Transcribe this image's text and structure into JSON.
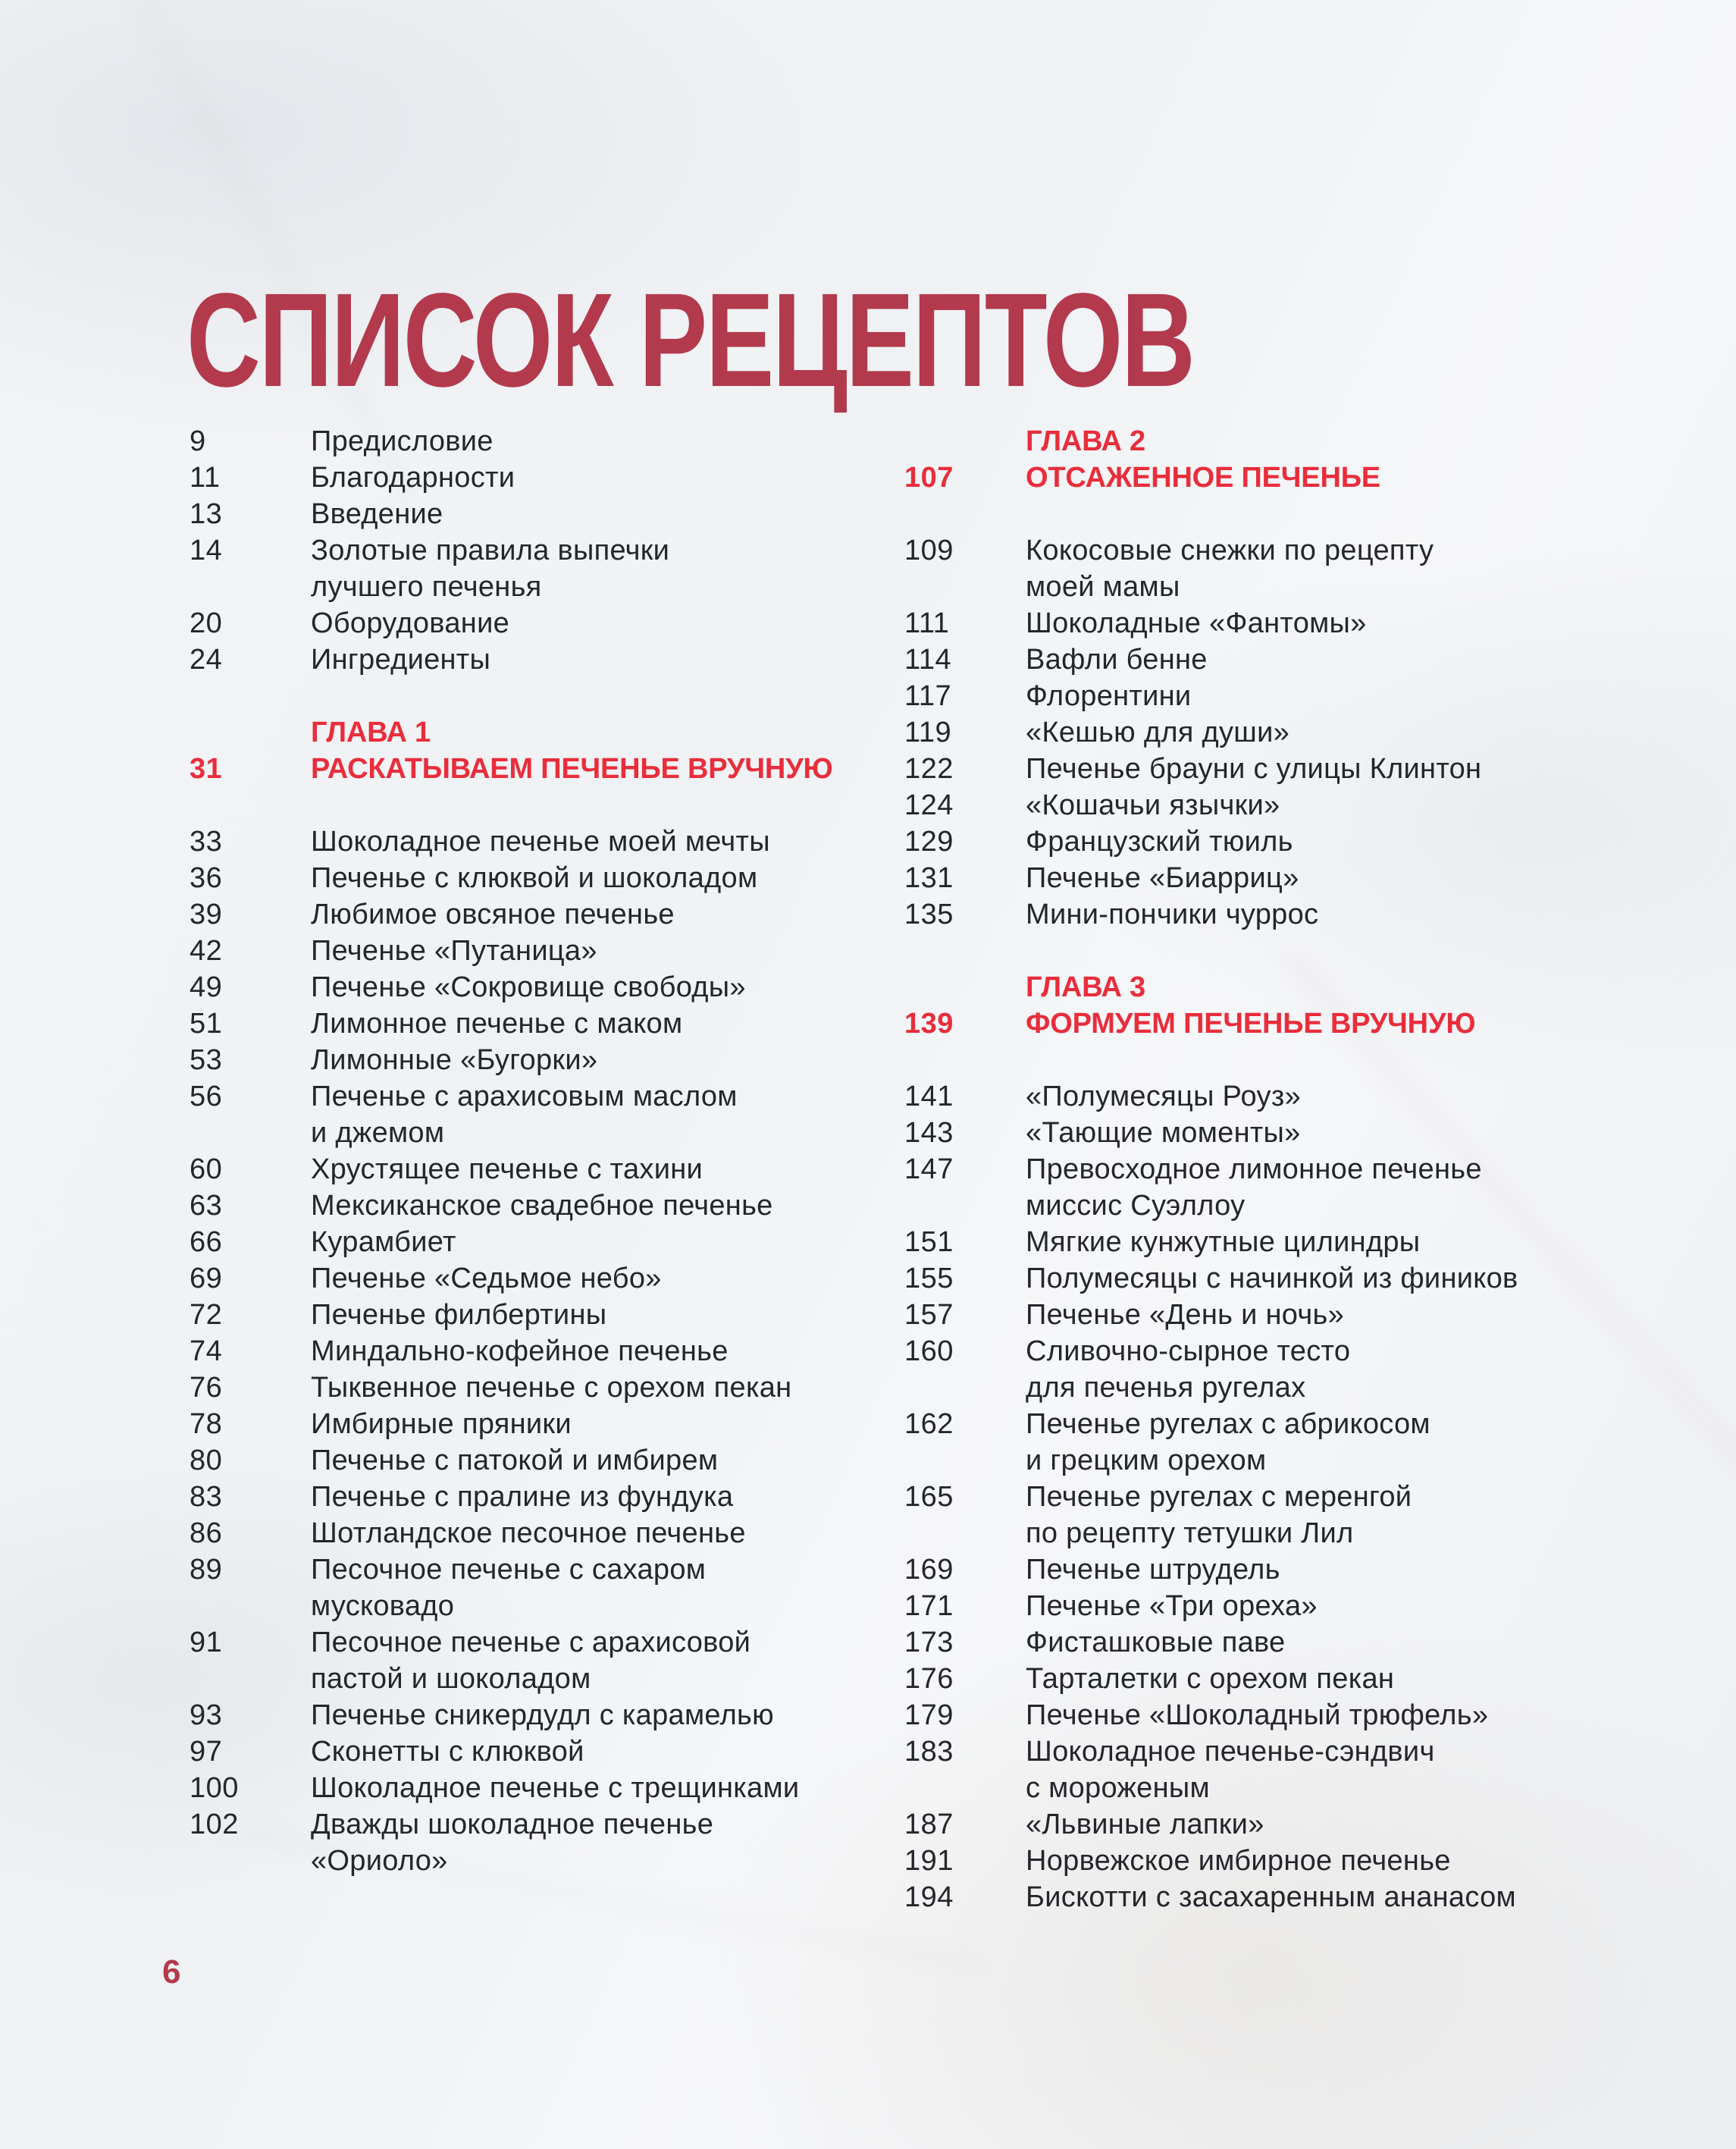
{
  "page": {
    "title": "СПИСОК РЕЦЕПТОВ",
    "page_number": "6",
    "colors": {
      "title": "#b23a4c",
      "chapter": "#e92d3b",
      "text": "#24262c",
      "folio": "#b23a4c",
      "background": "#f1f2f5"
    }
  },
  "toc": {
    "columns": [
      {
        "name": "left",
        "sections": [
          {
            "chapter": null,
            "entries": [
              {
                "page": "9",
                "lines": [
                  "Предисловие"
                ]
              },
              {
                "page": "11",
                "lines": [
                  "Благодарности"
                ]
              },
              {
                "page": "13",
                "lines": [
                  "Введение"
                ]
              },
              {
                "page": "14",
                "lines": [
                  "Золотые правила выпечки",
                  "лучшего печенья"
                ]
              },
              {
                "page": "20",
                "lines": [
                  "Оборудование"
                ]
              },
              {
                "page": "24",
                "lines": [
                  "Ингредиенты"
                ]
              }
            ]
          },
          {
            "chapter": {
              "label": "ГЛАВА 1",
              "page": "31",
              "title": "РАСКАТЫВАЕМ ПЕЧЕНЬЕ ВРУЧНУЮ"
            },
            "entries": [
              {
                "page": "33",
                "lines": [
                  "Шоколадное печенье моей мечты"
                ]
              },
              {
                "page": "36",
                "lines": [
                  "Печенье с клюквой и шоколадом"
                ]
              },
              {
                "page": "39",
                "lines": [
                  "Любимое овсяное печенье"
                ]
              },
              {
                "page": "42",
                "lines": [
                  "Печенье «Путаница»"
                ]
              },
              {
                "page": "49",
                "lines": [
                  "Печенье «Сокровище свободы»"
                ]
              },
              {
                "page": "51",
                "lines": [
                  "Лимонное печенье с маком"
                ]
              },
              {
                "page": "53",
                "lines": [
                  "Лимонные «Бугорки»"
                ]
              },
              {
                "page": "56",
                "lines": [
                  "Печенье с арахисовым маслом",
                  "и джемом"
                ]
              },
              {
                "page": "60",
                "lines": [
                  "Хрустящее печенье с тахини"
                ]
              },
              {
                "page": "63",
                "lines": [
                  "Мексиканское свадебное печенье"
                ]
              },
              {
                "page": "66",
                "lines": [
                  "Курамбиет"
                ]
              },
              {
                "page": "69",
                "lines": [
                  "Печенье «Седьмое небо»"
                ]
              },
              {
                "page": "72",
                "lines": [
                  "Печенье филбертины"
                ]
              },
              {
                "page": "74",
                "lines": [
                  "Миндально-кофейное печенье"
                ]
              },
              {
                "page": "76",
                "lines": [
                  "Тыквенное печенье с орехом пекан"
                ]
              },
              {
                "page": "78",
                "lines": [
                  "Имбирные пряники"
                ]
              },
              {
                "page": "80",
                "lines": [
                  "Печенье с патокой и имбирем"
                ]
              },
              {
                "page": "83",
                "lines": [
                  "Печенье с пралине из фундука"
                ]
              },
              {
                "page": "86",
                "lines": [
                  "Шотландское песочное печенье"
                ]
              },
              {
                "page": "89",
                "lines": [
                  "Песочное печенье с сахаром",
                  "мусковадо"
                ]
              },
              {
                "page": "91",
                "lines": [
                  "Песочное печенье с арахисовой",
                  "пастой и шоколадом"
                ]
              },
              {
                "page": "93",
                "lines": [
                  "Печенье сникердудл с карамелью"
                ]
              },
              {
                "page": "97",
                "lines": [
                  "Сконетты с клюквой"
                ]
              },
              {
                "page": "100",
                "lines": [
                  "Шоколадное печенье с трещинками"
                ]
              },
              {
                "page": "102",
                "lines": [
                  "Дважды шоколадное печенье",
                  "«Ориоло»"
                ]
              }
            ]
          }
        ]
      },
      {
        "name": "right",
        "sections": [
          {
            "chapter": {
              "label": "ГЛАВА 2",
              "page": "107",
              "title": "ОТСАЖЕННОЕ ПЕЧЕНЬЕ"
            },
            "entries": [
              {
                "page": "109",
                "lines": [
                  "Кокосовые снежки по рецепту",
                  "моей мамы"
                ]
              },
              {
                "page": "111",
                "lines": [
                  "Шоколадные «Фантомы»"
                ]
              },
              {
                "page": "114",
                "lines": [
                  "Вафли бенне"
                ]
              },
              {
                "page": "117",
                "lines": [
                  "Флорентини"
                ]
              },
              {
                "page": "119",
                "lines": [
                  "«Кешью для души»"
                ]
              },
              {
                "page": "122",
                "lines": [
                  "Печенье брауни с улицы Клинтон"
                ]
              },
              {
                "page": "124",
                "lines": [
                  "«Кошачьи язычки»"
                ]
              },
              {
                "page": "129",
                "lines": [
                  "Французский тюиль"
                ]
              },
              {
                "page": "131",
                "lines": [
                  "Печенье «Биарриц»"
                ]
              },
              {
                "page": "135",
                "lines": [
                  "Мини-пончики чуррос"
                ]
              }
            ]
          },
          {
            "chapter": {
              "label": "ГЛАВА 3",
              "page": "139",
              "title": "ФОРМУЕМ ПЕЧЕНЬЕ ВРУЧНУЮ"
            },
            "entries": [
              {
                "page": "141",
                "lines": [
                  "«Полумесяцы Роуз»"
                ]
              },
              {
                "page": "143",
                "lines": [
                  "«Тающие моменты»"
                ]
              },
              {
                "page": "147",
                "lines": [
                  "Превосходное лимонное печенье",
                  "миссис Суэллоу"
                ]
              },
              {
                "page": "151",
                "lines": [
                  "Мягкие кунжутные цилиндры"
                ]
              },
              {
                "page": "155",
                "lines": [
                  "Полумесяцы с начинкой из фиников"
                ]
              },
              {
                "page": "157",
                "lines": [
                  "Печенье «День и ночь»"
                ]
              },
              {
                "page": "160",
                "lines": [
                  "Сливочно-сырное тесто",
                  "для печенья ругелах"
                ]
              },
              {
                "page": "162",
                "lines": [
                  "Печенье ругелах с абрикосом",
                  "и грецким орехом"
                ]
              },
              {
                "page": "165",
                "lines": [
                  "Печенье ругелах с меренгой",
                  "по рецепту тетушки Лил"
                ]
              },
              {
                "page": "169",
                "lines": [
                  "Печенье штрудель"
                ]
              },
              {
                "page": "171",
                "lines": [
                  "Печенье «Три ореха»"
                ]
              },
              {
                "page": "173",
                "lines": [
                  "Фисташковые паве"
                ]
              },
              {
                "page": "176",
                "lines": [
                  "Тарталетки с орехом пекан"
                ]
              },
              {
                "page": "179",
                "lines": [
                  "Печенье «Шоколадный трюфель»"
                ]
              },
              {
                "page": "183",
                "lines": [
                  "Шоколадное печенье-сэндвич",
                  "с мороженым"
                ]
              },
              {
                "page": "187",
                "lines": [
                  "«Львиные лапки»"
                ]
              },
              {
                "page": "191",
                "lines": [
                  "Норвежское имбирное печенье"
                ]
              },
              {
                "page": "194",
                "lines": [
                  "Бискотти с засахаренным ананасом"
                ]
              }
            ]
          }
        ]
      }
    ]
  }
}
